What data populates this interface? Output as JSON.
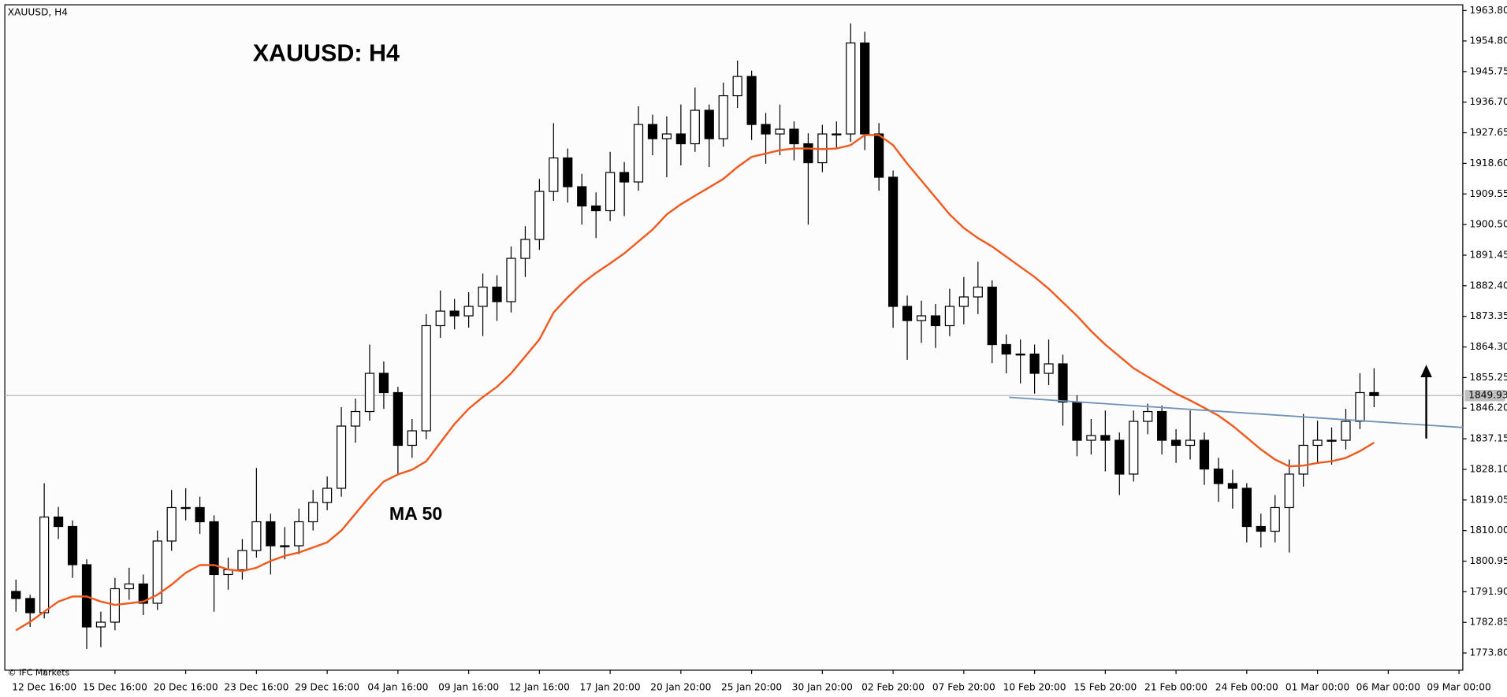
{
  "chart_data": {
    "type": "candlestick",
    "symbol_label": "XAUUSD, H4",
    "title": "XAUUSD: H4",
    "copyright": "© IFC Markets",
    "up_color": "#ffffff",
    "down_color": "#000000",
    "categories": [
      null,
      null,
      "12 Dec 16:00",
      null,
      null,
      null,
      null,
      "15 Dec 16:00",
      null,
      null,
      null,
      null,
      "20 Dec 16:00",
      null,
      null,
      null,
      null,
      "23 Dec 16:00",
      null,
      null,
      null,
      null,
      "29 Dec 16:00",
      null,
      null,
      null,
      null,
      "04 Jan 16:00",
      null,
      null,
      null,
      null,
      "09 Jan 16:00",
      null,
      null,
      null,
      null,
      "12 Jan 16:00",
      null,
      null,
      null,
      null,
      "17 Jan 20:00",
      null,
      null,
      null,
      null,
      "20 Jan 20:00",
      null,
      null,
      null,
      null,
      "25 Jan 20:00",
      null,
      null,
      null,
      null,
      "30 Jan 20:00",
      null,
      null,
      null,
      null,
      "02 Feb 20:00",
      null,
      null,
      null,
      null,
      "07 Feb 20:00",
      null,
      null,
      null,
      null,
      "10 Feb 20:00",
      null,
      null,
      null,
      null,
      "15 Feb 20:00",
      null,
      null,
      null,
      null,
      "21 Feb 00:00",
      null,
      null,
      null,
      null,
      "24 Feb 00:00",
      null,
      null,
      null,
      null,
      "01 Mar 00:00",
      null,
      null,
      null,
      null,
      "06 Mar 00:00",
      null,
      null,
      null,
      null,
      "09 Mar 00:00"
    ],
    "open": [
      1792.0,
      1789.9,
      1785.7,
      1814.0,
      1811.2,
      1799.9,
      1781.5,
      1782.9,
      1792.8,
      1794.2,
      1788.5,
      1806.9,
      1816.8,
      1816.8,
      1812.6,
      1797.0,
      1798.4,
      1804.1,
      1812.6,
      1805.5,
      1805.5,
      1812.6,
      1818.3,
      1822.5,
      1840.9,
      1845.2,
      1856.5,
      1850.8,
      1835.2,
      1839.5,
      1870.6,
      1874.9,
      1873.5,
      1876.3,
      1882.0,
      1877.7,
      1890.5,
      1896.1,
      1910.3,
      1920.2,
      1911.7,
      1906.0,
      1904.6,
      1915.9,
      1913.1,
      1930.1,
      1925.9,
      1927.3,
      1924.4,
      1934.3,
      1925.9,
      1938.6,
      1944.3,
      1930.1,
      1927.3,
      1928.7,
      1924.4,
      1918.8,
      1927.3,
      1927.3,
      1954.2,
      1927.3,
      1914.5,
      1876.3,
      1872.1,
      1873.5,
      1870.6,
      1876.3,
      1879.1,
      1882.0,
      1865.0,
      1862.2,
      1862.2,
      1856.5,
      1859.3,
      1848.0,
      1836.7,
      1838.1,
      1836.7,
      1826.7,
      1842.3,
      1845.2,
      1836.7,
      1835.2,
      1836.7,
      1828.2,
      1823.9,
      1822.5,
      1811.2,
      1809.8,
      1816.8,
      1826.7,
      1835.2,
      1836.7,
      1836.7,
      1842.3,
      1850.8,
      null,
      null,
      null,
      null,
      null,
      null
    ],
    "high": [
      1795.5,
      1791.0,
      1824.0,
      1817.0,
      1813.0,
      1801.5,
      1786.0,
      1796.0,
      1799.0,
      1797.0,
      1810.0,
      1822.0,
      1822.5,
      1820.0,
      1814.5,
      1802.0,
      1807.5,
      1828.5,
      1815.0,
      1811.0,
      1816.5,
      1822.0,
      1826.0,
      1846.5,
      1849.0,
      1865.0,
      1860.0,
      1852.5,
      1843.0,
      1874.0,
      1881.0,
      1878.5,
      1880.5,
      1886.0,
      1885.5,
      1894.0,
      1900.0,
      1914.0,
      1930.5,
      1923.0,
      1915.5,
      1910.0,
      1922.0,
      1919.0,
      1935.5,
      1933.0,
      1932.5,
      1936.0,
      1941.0,
      1936.0,
      1942.5,
      1949.0,
      1946.0,
      1933.5,
      1936.0,
      1931.0,
      1927.5,
      1930.0,
      1931.0,
      1960.0,
      1957.5,
      1930.5,
      1916.5,
      1879.5,
      1878.0,
      1877.0,
      1881.5,
      1885.0,
      1889.5,
      1884.0,
      1868.0,
      1866.5,
      1865.0,
      1866.5,
      1862.0,
      1850.0,
      1843.0,
      1845.5,
      1839.0,
      1845.5,
      1847.5,
      1847.0,
      1840.0,
      1845.5,
      1839.0,
      1831.5,
      1828.0,
      1824.0,
      1815.0,
      1820.5,
      1831.0,
      1844.5,
      1842.5,
      1840.5,
      1846.0,
      1856.5,
      1858.0,
      null,
      null,
      null,
      null,
      null,
      null
    ],
    "low": [
      1786.0,
      1781.5,
      1784.0,
      1807.5,
      1796.0,
      1775.0,
      1775.5,
      1780.5,
      1789.5,
      1785.0,
      1786.5,
      1804.0,
      1813.0,
      1809.0,
      1786.0,
      1792.5,
      1795.5,
      1802.0,
      1797.0,
      1801.5,
      1803.0,
      1810.0,
      1816.0,
      1820.0,
      1836.0,
      1842.5,
      1846.0,
      1826.5,
      1831.5,
      1837.0,
      1867.0,
      1869.5,
      1870.0,
      1867.5,
      1872.0,
      1874.5,
      1885.0,
      1893.0,
      1907.5,
      1907.0,
      1900.5,
      1896.5,
      1901.5,
      1903.0,
      1910.5,
      1921.0,
      1914.5,
      1918.0,
      1922.0,
      1917.5,
      1923.5,
      1935.0,
      1925.5,
      1918.5,
      1921.0,
      1919.5,
      1900.5,
      1916.0,
      1923.0,
      1925.0,
      1922.5,
      1910.5,
      1870.0,
      1860.5,
      1865.5,
      1864.0,
      1867.5,
      1871.0,
      1874.0,
      1859.5,
      1856.5,
      1853.5,
      1850.5,
      1853.0,
      1841.0,
      1832.0,
      1832.5,
      1827.5,
      1820.5,
      1824.5,
      1838.5,
      1832.5,
      1830.0,
      1831.0,
      1823.5,
      1818.5,
      1816.5,
      1806.5,
      1805.0,
      1806.5,
      1803.5,
      1823.0,
      1830.0,
      1829.5,
      1834.0,
      1840.0,
      1846.5,
      null,
      null,
      null,
      null,
      null,
      null
    ],
    "close": [
      1789.9,
      1785.7,
      1814.0,
      1811.2,
      1799.9,
      1781.5,
      1782.9,
      1792.8,
      1794.2,
      1788.5,
      1806.9,
      1816.8,
      1816.8,
      1812.6,
      1797.0,
      1798.4,
      1804.1,
      1812.6,
      1805.5,
      1805.5,
      1812.6,
      1818.3,
      1822.5,
      1840.9,
      1845.2,
      1856.5,
      1850.8,
      1835.2,
      1839.5,
      1870.6,
      1874.9,
      1873.5,
      1876.3,
      1882.0,
      1877.7,
      1890.5,
      1896.1,
      1910.3,
      1920.2,
      1911.7,
      1906.0,
      1904.6,
      1915.9,
      1913.1,
      1930.1,
      1925.9,
      1927.3,
      1924.4,
      1934.3,
      1925.9,
      1938.6,
      1944.3,
      1930.1,
      1927.3,
      1928.7,
      1924.4,
      1918.8,
      1927.3,
      1927.3,
      1954.2,
      1927.3,
      1914.5,
      1876.3,
      1872.1,
      1873.5,
      1870.6,
      1876.3,
      1879.1,
      1882.0,
      1865.0,
      1862.2,
      1862.2,
      1856.5,
      1859.3,
      1848.0,
      1836.7,
      1838.1,
      1836.7,
      1826.7,
      1842.3,
      1845.2,
      1836.7,
      1835.2,
      1836.7,
      1828.2,
      1823.9,
      1822.5,
      1811.2,
      1809.8,
      1816.8,
      1826.7,
      1835.2,
      1836.7,
      1836.7,
      1842.3,
      1850.8,
      1849.93,
      null,
      null,
      null,
      null,
      null,
      null
    ],
    "series": [
      {
        "name": "MA 50",
        "color": "#f05a1e",
        "values": [
          1780.5,
          1783,
          1786,
          1789,
          1790.5,
          1790.5,
          1789,
          1788,
          1788.5,
          1789,
          1791,
          1794,
          1797.5,
          1799.8,
          1799.8,
          1798.5,
          1798,
          1799,
          1801,
          1802.5,
          1803.5,
          1805,
          1806.5,
          1810,
          1815,
          1820,
          1824.5,
          1826.6,
          1828,
          1830.5,
          1836,
          1841.5,
          1846,
          1849.5,
          1852.5,
          1856.5,
          1861.5,
          1866.5,
          1874.5,
          1879,
          1883,
          1886.2,
          1889,
          1892,
          1895.5,
          1899,
          1903.5,
          1906.5,
          1909,
          1911.5,
          1914,
          1917.5,
          1920.5,
          1921.5,
          1922.5,
          1923,
          1923,
          1922.8,
          1923,
          1924,
          1927,
          1927,
          1924,
          1918.5,
          1913.5,
          1908.5,
          1903.5,
          1899.5,
          1896.5,
          1894,
          1891,
          1888,
          1885,
          1881.5,
          1877.5,
          1873.5,
          1869,
          1865,
          1861.5,
          1858,
          1855.5,
          1853,
          1850.5,
          1848.5,
          1846.3,
          1844,
          1841,
          1837.5,
          1834,
          1831,
          1829,
          1829.2,
          1830,
          1830.5,
          1831.5,
          1833.5,
          1836,
          null,
          null,
          null,
          null,
          null,
          null
        ]
      }
    ],
    "current_price": 1849.93,
    "ylim": [
      1768.7,
      1965.5
    ],
    "yticks": [
      {
        "value": 1963.8,
        "label": "1963.80"
      },
      {
        "value": 1954.8,
        "label": "1954.80"
      },
      1945.75,
      {
        "value": 1936.7,
        "label": "1936.70"
      },
      1927.65,
      {
        "value": 1918.6,
        "label": "1918.60"
      },
      1909.55,
      {
        "value": 1900.5,
        "label": "1900.50"
      },
      1891.45,
      {
        "value": 1882.4,
        "label": "1882.40"
      },
      1873.35,
      {
        "value": 1864.3,
        "label": "1864.30"
      },
      1855.25,
      {
        "value": 1846.2,
        "label": "1846.20"
      },
      1837.15,
      {
        "value": 1828.1,
        "label": "1828.10"
      },
      1819.05,
      {
        "value": 1810,
        "label": "1810.00"
      },
      1800.95,
      {
        "value": 1791.9,
        "label": "1791.90"
      },
      1782.85,
      {
        "value": 1773.8,
        "label": "1773.80"
      }
    ],
    "grid": false
  }
}
